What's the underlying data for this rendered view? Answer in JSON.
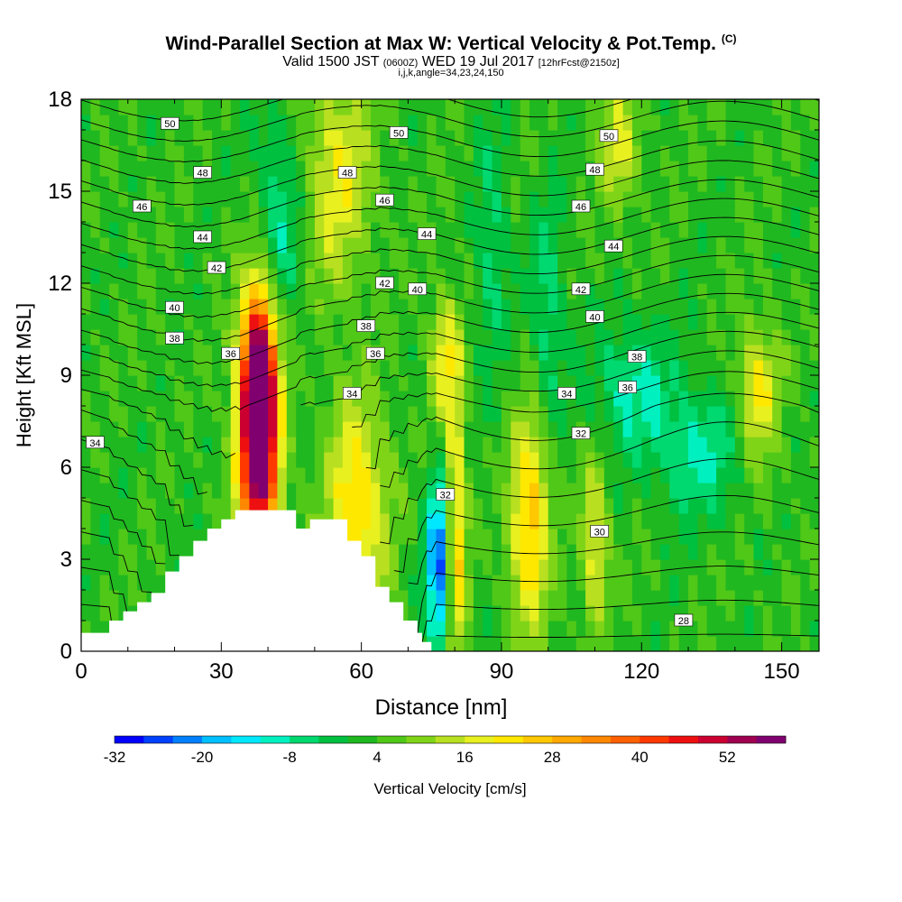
{
  "title": {
    "main": "Wind-Parallel Section at Max W: Vertical Velocity & Pot.Temp.",
    "copyright": "(C)",
    "valid_prefix": "Valid 1500 JST",
    "valid_utc": "(0600Z)",
    "valid_date": "WED 19 Jul 2017",
    "forecast": "[12hrFcst@2150z]",
    "params": "i,j,k,angle=34,23,24,150"
  },
  "chart_data": {
    "type": "heatmap",
    "xlabel": "Distance [nm]",
    "ylabel": "Height [Kft MSL]",
    "xlim": [
      0,
      158
    ],
    "ylim": [
      0,
      18
    ],
    "x_ticks": [
      0,
      30,
      60,
      90,
      120,
      150
    ],
    "y_ticks": [
      0,
      3,
      6,
      9,
      12,
      15,
      18
    ],
    "grid": false,
    "colorbar": {
      "label": "Vertical Velocity [cm/s]",
      "placement": "bottom",
      "tick_labels": [
        "-32",
        "-20",
        "-8",
        "4",
        "16",
        "28",
        "40",
        "52"
      ],
      "tick_values": [
        -32,
        -20,
        -8,
        4,
        16,
        28,
        40,
        52
      ],
      "levels": [
        -32,
        -28,
        -24,
        -20,
        -16,
        -12,
        -8,
        -4,
        0,
        4,
        8,
        12,
        16,
        20,
        24,
        28,
        32,
        36,
        40,
        44,
        48,
        52,
        56,
        60
      ],
      "colors": [
        "#0000ff",
        "#0040ff",
        "#0080ff",
        "#00bfff",
        "#00e8ff",
        "#00f0c0",
        "#00d870",
        "#00c040",
        "#20b820",
        "#50c818",
        "#80d418",
        "#b8e020",
        "#e8f020",
        "#ffe800",
        "#ffc800",
        "#ffa800",
        "#ff8800",
        "#ff6000",
        "#ff3800",
        "#ee1010",
        "#cc0030",
        "#a00050",
        "#800070"
      ]
    },
    "vertical_velocity_features": [
      {
        "x": 38,
        "y": 8.2,
        "w": 59,
        "sx": 2.6,
        "sy": 2.5
      },
      {
        "x": 38,
        "y": 6.5,
        "w": 30,
        "sx": 3.2,
        "sy": 3.0
      },
      {
        "x": 59,
        "y": 4.5,
        "w": 22,
        "sx": 4.5,
        "sy": 2.5
      },
      {
        "x": 96,
        "y": 4.2,
        "w": 24,
        "sx": 3.0,
        "sy": 2.5
      },
      {
        "x": 110,
        "y": 3.5,
        "w": 16,
        "sx": 2.0,
        "sy": 2.0
      },
      {
        "x": 80,
        "y": 3.5,
        "w": 28,
        "sx": 1.6,
        "sy": 3.0
      },
      {
        "x": 77,
        "y": 2.8,
        "w": -30,
        "sx": 2.0,
        "sy": 2.2
      },
      {
        "x": 78,
        "y": 9.5,
        "w": 16,
        "sx": 2.5,
        "sy": 1.5
      },
      {
        "x": 145,
        "y": 8.5,
        "w": 18,
        "sx": 3.0,
        "sy": 1.5
      },
      {
        "x": 55,
        "y": 15.5,
        "w": 16,
        "sx": 5.0,
        "sy": 2.5
      },
      {
        "x": 115,
        "y": 16.5,
        "w": 14,
        "sx": 3.0,
        "sy": 1.5
      },
      {
        "x": 42,
        "y": 14.0,
        "w": -12,
        "sx": 3.5,
        "sy": 2.5
      },
      {
        "x": 100,
        "y": 11.0,
        "w": -10,
        "sx": 2.5,
        "sy": 2.5
      },
      {
        "x": 118,
        "y": 8.5,
        "w": -12,
        "sx": 6.0,
        "sy": 1.5
      },
      {
        "x": 132,
        "y": 6.5,
        "w": -12,
        "sx": 6.0,
        "sy": 1.5
      },
      {
        "x": 88,
        "y": 13.0,
        "w": -8,
        "sx": 2.5,
        "sy": 3.0
      }
    ],
    "terrain_height_kft": [
      [
        0,
        0.6
      ],
      [
        3,
        0.6
      ],
      [
        6,
        1.0
      ],
      [
        9,
        1.3
      ],
      [
        12,
        1.6
      ],
      [
        15,
        1.9
      ],
      [
        18,
        2.6
      ],
      [
        21,
        3.1
      ],
      [
        24,
        3.6
      ],
      [
        27,
        4.0
      ],
      [
        30,
        4.3
      ],
      [
        33,
        4.6
      ],
      [
        43,
        4.6
      ],
      [
        46,
        4.0
      ],
      [
        49,
        4.3
      ],
      [
        54,
        4.3
      ],
      [
        57,
        3.6
      ],
      [
        60,
        3.1
      ],
      [
        63,
        2.1
      ],
      [
        66,
        1.6
      ],
      [
        69,
        1.0
      ],
      [
        72,
        0.6
      ],
      [
        73,
        0.3
      ],
      [
        75,
        0.0
      ]
    ],
    "potential_temperature": {
      "label_values": [
        28,
        30,
        32,
        34,
        36,
        38,
        40,
        42,
        44,
        46,
        48,
        50
      ],
      "contour_levels": [
        28,
        29,
        30,
        31,
        32,
        33,
        34,
        35,
        36,
        37,
        38,
        39,
        40,
        41,
        42,
        43,
        44,
        45,
        46,
        47,
        48,
        49,
        50,
        51
      ],
      "labels": [
        {
          "text": "50",
          "x": 19,
          "y": 17.2
        },
        {
          "text": "50",
          "x": 68,
          "y": 16.9
        },
        {
          "text": "50",
          "x": 113,
          "y": 16.8
        },
        {
          "text": "48",
          "x": 26,
          "y": 15.6
        },
        {
          "text": "48",
          "x": 57,
          "y": 15.6
        },
        {
          "text": "48",
          "x": 110,
          "y": 15.7
        },
        {
          "text": "46",
          "x": 13,
          "y": 14.5
        },
        {
          "text": "46",
          "x": 65,
          "y": 14.7
        },
        {
          "text": "46",
          "x": 107,
          "y": 14.5
        },
        {
          "text": "44",
          "x": 26,
          "y": 13.5
        },
        {
          "text": "44",
          "x": 74,
          "y": 13.6
        },
        {
          "text": "44",
          "x": 114,
          "y": 13.2
        },
        {
          "text": "42",
          "x": 29,
          "y": 12.5
        },
        {
          "text": "42",
          "x": 65,
          "y": 12.0
        },
        {
          "text": "42",
          "x": 107,
          "y": 11.8
        },
        {
          "text": "40",
          "x": 20,
          "y": 11.2
        },
        {
          "text": "40",
          "x": 72,
          "y": 11.8
        },
        {
          "text": "40",
          "x": 110,
          "y": 10.9
        },
        {
          "text": "38",
          "x": 20,
          "y": 10.2
        },
        {
          "text": "38",
          "x": 61,
          "y": 10.6
        },
        {
          "text": "38",
          "x": 119,
          "y": 9.6
        },
        {
          "text": "36",
          "x": 32,
          "y": 9.7
        },
        {
          "text": "36",
          "x": 63,
          "y": 9.7
        },
        {
          "text": "36",
          "x": 117,
          "y": 8.6
        },
        {
          "text": "34",
          "x": 3,
          "y": 6.8
        },
        {
          "text": "34",
          "x": 58,
          "y": 8.4
        },
        {
          "text": "34",
          "x": 104,
          "y": 8.4
        },
        {
          "text": "32",
          "x": 78,
          "y": 5.1
        },
        {
          "text": "32",
          "x": 107,
          "y": 7.1
        },
        {
          "text": "30",
          "x": 111,
          "y": 3.9
        },
        {
          "text": "28",
          "x": 129,
          "y": 1.0
        }
      ]
    }
  }
}
